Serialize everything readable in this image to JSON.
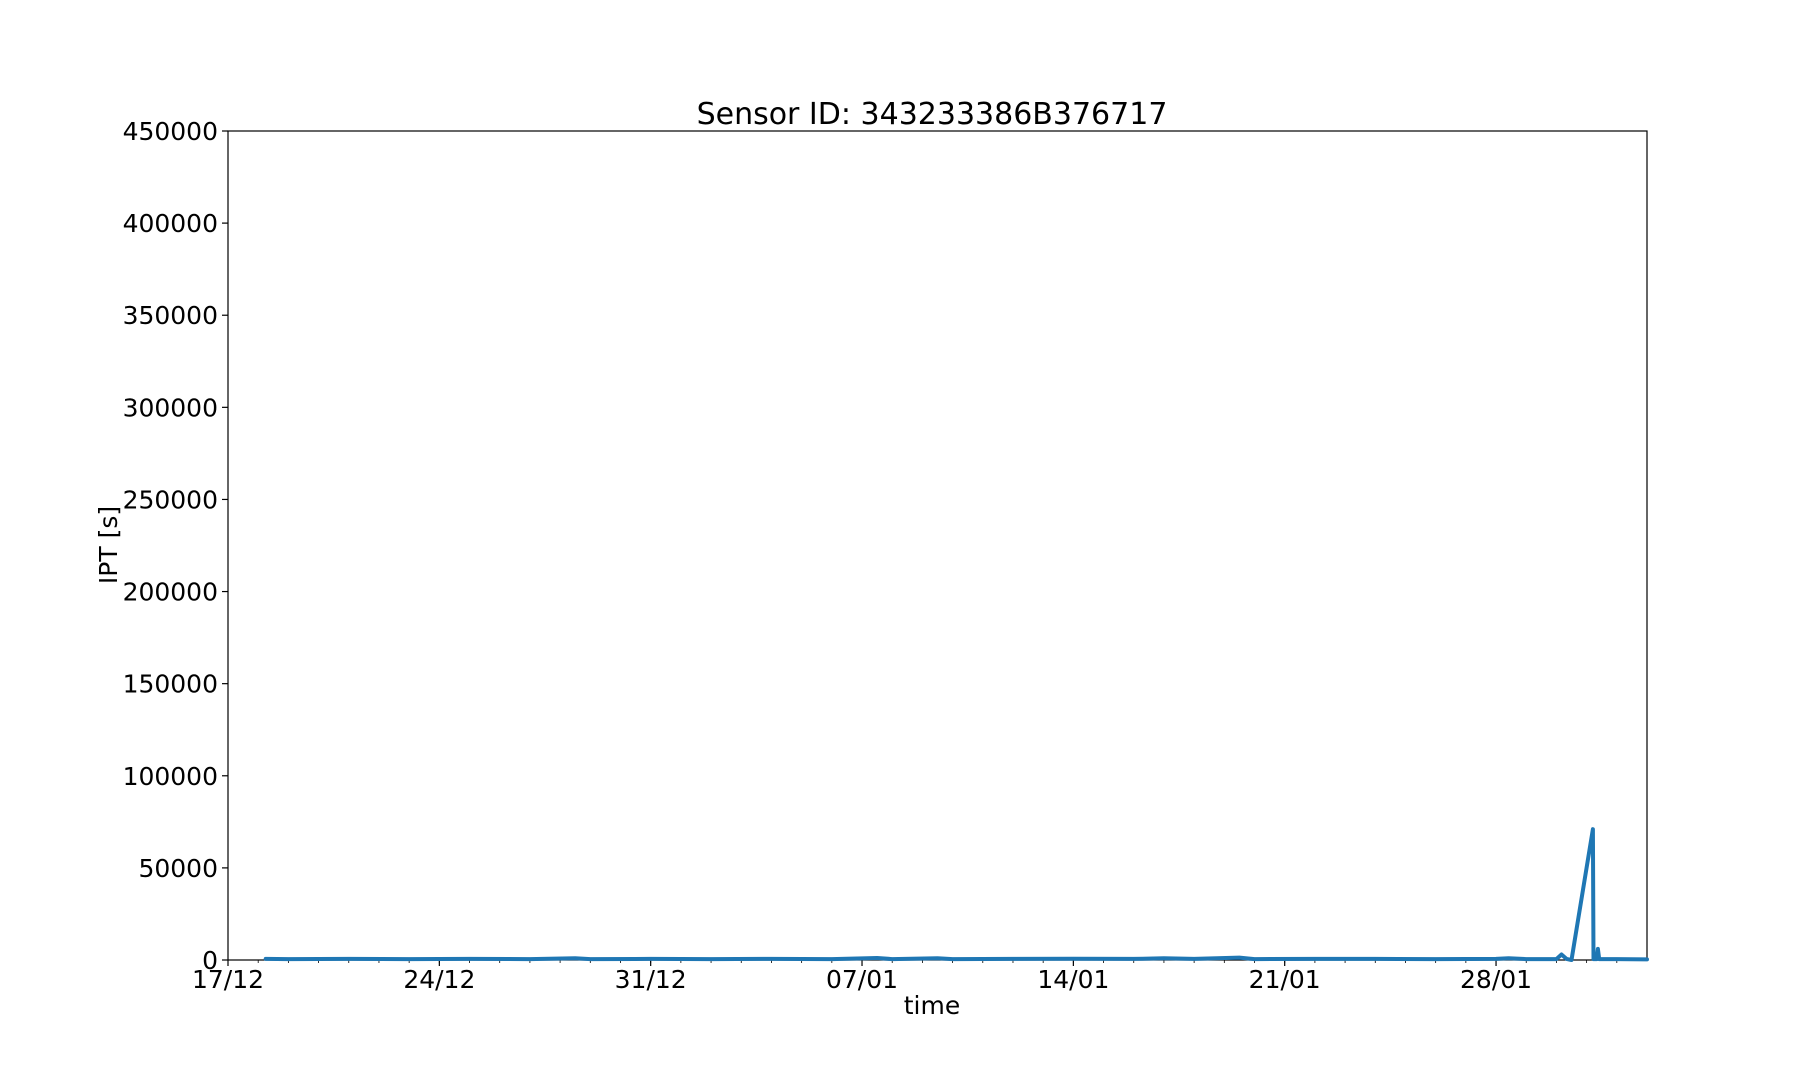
{
  "chart_data": {
    "type": "line",
    "title": "Sensor ID: 343233386B376717",
    "xlabel": "time",
    "ylabel": "IPT [s]",
    "ylim": [
      0,
      450000
    ],
    "xlim": [
      "2023-12-17",
      "2024-02-02"
    ],
    "grid": false,
    "legend": "none",
    "yticks": [
      0,
      50000,
      100000,
      150000,
      200000,
      250000,
      300000,
      350000,
      400000,
      450000
    ],
    "xticks": [
      {
        "date": "2023-12-17",
        "label": "17/12"
      },
      {
        "date": "2023-12-24",
        "label": "24/12"
      },
      {
        "date": "2023-12-31",
        "label": "31/12"
      },
      {
        "date": "2024-01-07",
        "label": "07/01"
      },
      {
        "date": "2024-01-14",
        "label": "14/01"
      },
      {
        "date": "2024-01-21",
        "label": "21/01"
      },
      {
        "date": "2024-01-28",
        "label": "28/01"
      }
    ],
    "series": [
      {
        "color": "#1f77b4",
        "x": [
          "2023-12-18T06:00",
          "2023-12-19T00:00",
          "2023-12-21T00:00",
          "2023-12-23T00:00",
          "2023-12-25T00:00",
          "2023-12-27T00:00",
          "2023-12-28T12:00",
          "2023-12-29T00:00",
          "2023-12-31T00:00",
          "2024-01-02T00:00",
          "2024-01-04T00:00",
          "2024-01-06T00:00",
          "2024-01-07T12:00",
          "2024-01-08T00:00",
          "2024-01-09T12:00",
          "2024-01-10T00:00",
          "2024-01-12T00:00",
          "2024-01-14T00:00",
          "2024-01-16T00:00",
          "2024-01-17T00:00",
          "2024-01-18T00:00",
          "2024-01-19T12:00",
          "2024-01-20T00:00",
          "2024-01-22T00:00",
          "2024-01-24T00:00",
          "2024-01-26T00:00",
          "2024-01-28T00:00",
          "2024-01-28T10:00",
          "2024-01-29T00:00",
          "2024-01-30T00:00",
          "2024-01-30T04:00",
          "2024-01-30T08:00",
          "2024-01-30T12:00",
          "2024-01-31T05:00",
          "2024-01-31T05:30",
          "2024-01-31T08:00",
          "2024-01-31T09:00",
          "2024-01-31T10:00",
          "2024-01-31T12:00",
          "2024-02-01T00:00",
          "2024-02-01T12:00",
          "2024-02-02T00:00"
        ],
        "values": [
          600,
          500,
          600,
          500,
          600,
          500,
          900,
          500,
          600,
          500,
          600,
          500,
          1100,
          500,
          1000,
          500,
          600,
          700,
          600,
          900,
          600,
          1300,
          500,
          600,
          600,
          500,
          600,
          1000,
          500,
          500,
          3000,
          600,
          0,
          71000,
          500,
          500,
          6000,
          500,
          500,
          500,
          400,
          300
        ]
      }
    ]
  }
}
